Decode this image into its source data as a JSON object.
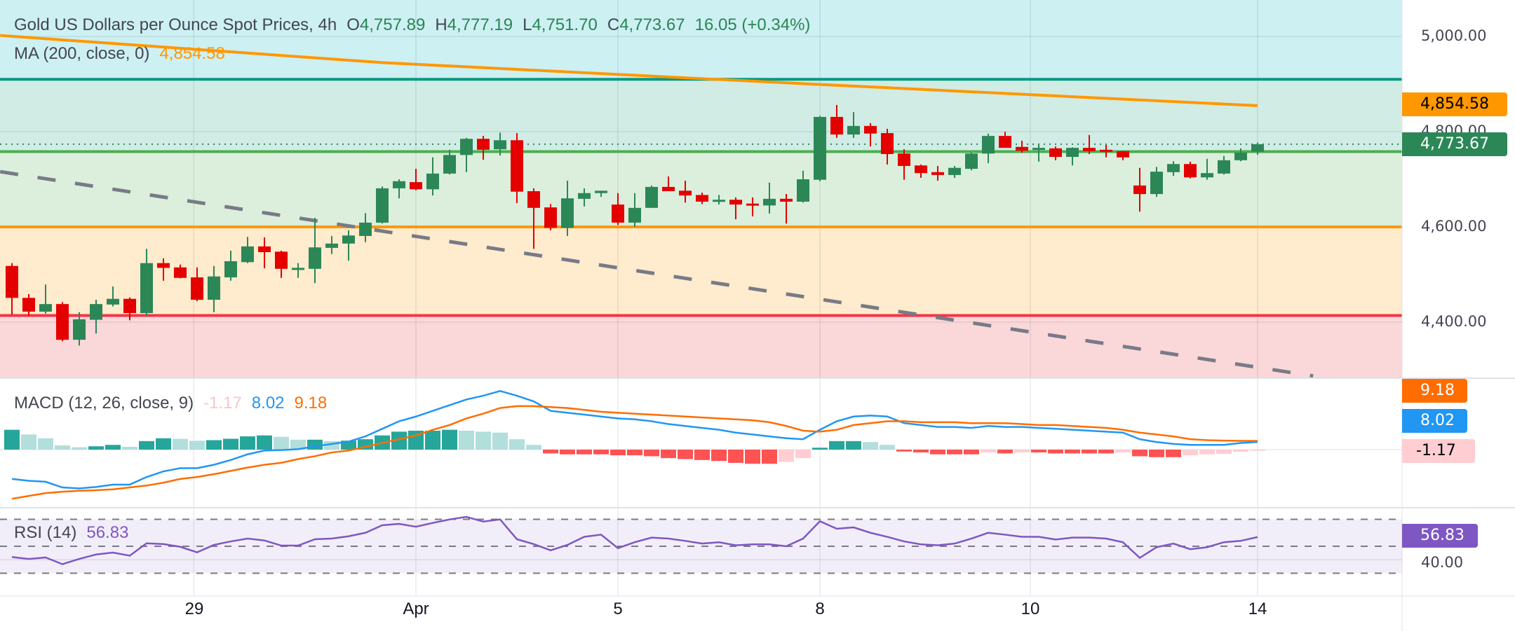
{
  "header": {
    "title": "Gold US Dollars per Ounce Spot Prices, 4h",
    "open_label": "O",
    "open": "4,757.89",
    "high_label": "H",
    "high": "4,777.19",
    "low_label": "L",
    "low": "4,751.70",
    "close_label": "C",
    "close": "4,773.67",
    "change": "16.05 (+0.34%)"
  },
  "ma_legend": {
    "label": "MA (200, close, 0)",
    "value": "4,854.58"
  },
  "macd_legend": {
    "label": "MACD (12, 26, close, 9)",
    "histogram": "-1.17",
    "macd": "8.02",
    "signal": "9.18"
  },
  "rsi_legend": {
    "label": "RSI (14)",
    "value": "56.83"
  },
  "price_axis": {
    "ticks": [
      "5,000.00",
      "4,800.00",
      "4,600.00",
      "4,400.00"
    ],
    "ma_badge": "4,854.58",
    "last_price_badge": "4,773.67"
  },
  "macd_axis": {
    "signal_badge": "9.18",
    "macd_badge": "8.02",
    "histogram_badge": "-1.17"
  },
  "rsi_axis": {
    "value_badge": "56.83",
    "tick": "40.00"
  },
  "time_axis": {
    "labels": [
      "29",
      "Apr",
      "5",
      "8",
      "10",
      "14"
    ]
  },
  "colors": {
    "up": "#2c8757",
    "down": "#e50000",
    "ma": "#ff9800",
    "macd": "#2196f3",
    "signal": "#ff6d00",
    "rsi": "#7e57c2",
    "hist_up_strong": "#26a69a",
    "hist_up_weak": "#b2dfdb",
    "hist_down_strong": "#ff5252",
    "hist_down_weak": "#ffcdd2",
    "zone_top": "#cdf0f3",
    "zone_teal": "#d1ece4",
    "zone_green": "#dcefdc",
    "zone_orange": "#ffebcd",
    "zone_red": "#fad7d9",
    "line_teal": "#089981",
    "line_green": "#4caf50",
    "line_orange": "#ff9800",
    "line_red": "#f23645",
    "trendline": "#787b86"
  },
  "chart_data": {
    "type": "candlestick",
    "title": "Gold US Dollars per Ounce Spot Prices, 4h",
    "interval": "4h",
    "price_range": [
      4300,
      5070
    ],
    "x_ticks": [
      {
        "label": "29",
        "bar": 10.8
      },
      {
        "label": "Apr",
        "bar": 24
      },
      {
        "label": "5",
        "bar": 36
      },
      {
        "label": "8",
        "bar": 48
      },
      {
        "label": "10",
        "bar": 60.5
      },
      {
        "label": "14",
        "bar": 74
      }
    ],
    "y_ticks": [
      5000,
      4800,
      4600,
      4400
    ],
    "last_price": 4773.67,
    "candles_ohlc": [
      [
        4518,
        4524,
        4416,
        4451
      ],
      [
        4451,
        4459,
        4413,
        4422
      ],
      [
        4422,
        4479,
        4418,
        4438
      ],
      [
        4438,
        4442,
        4360,
        4363
      ],
      [
        4363,
        4421,
        4351,
        4406
      ],
      [
        4405,
        4447,
        4376,
        4438
      ],
      [
        4437,
        4475,
        4433,
        4449
      ],
      [
        4449,
        4452,
        4404,
        4419
      ],
      [
        4419,
        4554,
        4413,
        4524
      ],
      [
        4524,
        4534,
        4487,
        4514
      ],
      [
        4515,
        4521,
        4492,
        4493
      ],
      [
        4494,
        4515,
        4444,
        4447
      ],
      [
        4447,
        4518,
        4421,
        4496
      ],
      [
        4494,
        4550,
        4487,
        4528
      ],
      [
        4526,
        4579,
        4524,
        4559
      ],
      [
        4559,
        4578,
        4513,
        4547
      ],
      [
        4548,
        4550,
        4493,
        4512
      ],
      [
        4512,
        4524,
        4493,
        4514
      ],
      [
        4512,
        4619,
        4482,
        4557
      ],
      [
        4556,
        4581,
        4543,
        4565
      ],
      [
        4565,
        4593,
        4529,
        4582
      ],
      [
        4581,
        4629,
        4568,
        4609
      ],
      [
        4609,
        4685,
        4607,
        4681
      ],
      [
        4681,
        4700,
        4660,
        4696
      ],
      [
        4694,
        4722,
        4677,
        4679
      ],
      [
        4679,
        4746,
        4666,
        4712
      ],
      [
        4712,
        4762,
        4710,
        4751
      ],
      [
        4751,
        4787,
        4715,
        4785
      ],
      [
        4785,
        4791,
        4741,
        4762
      ],
      [
        4763,
        4798,
        4750,
        4782
      ],
      [
        4782,
        4797,
        4650,
        4674
      ],
      [
        4675,
        4681,
        4554,
        4640
      ],
      [
        4641,
        4648,
        4593,
        4598
      ],
      [
        4598,
        4697,
        4581,
        4660
      ],
      [
        4659,
        4681,
        4643,
        4671
      ],
      [
        4671,
        4676,
        4663,
        4676
      ],
      [
        4647,
        4671,
        4604,
        4609
      ],
      [
        4609,
        4671,
        4600,
        4640
      ],
      [
        4640,
        4687,
        4640,
        4684
      ],
      [
        4684,
        4706,
        4675,
        4675
      ],
      [
        4676,
        4697,
        4651,
        4666
      ],
      [
        4667,
        4672,
        4648,
        4653
      ],
      [
        4653,
        4667,
        4647,
        4657
      ],
      [
        4657,
        4662,
        4616,
        4647
      ],
      [
        4649,
        4662,
        4622,
        4645
      ],
      [
        4645,
        4693,
        4628,
        4659
      ],
      [
        4659,
        4669,
        4607,
        4653
      ],
      [
        4653,
        4718,
        4651,
        4700
      ],
      [
        4699,
        4833,
        4696,
        4831
      ],
      [
        4831,
        4856,
        4787,
        4794
      ],
      [
        4794,
        4841,
        4787,
        4812
      ],
      [
        4812,
        4818,
        4769,
        4796
      ],
      [
        4797,
        4806,
        4731,
        4753
      ],
      [
        4754,
        4763,
        4699,
        4728
      ],
      [
        4729,
        4731,
        4703,
        4713
      ],
      [
        4715,
        4728,
        4697,
        4709
      ],
      [
        4709,
        4728,
        4703,
        4724
      ],
      [
        4722,
        4756,
        4719,
        4754
      ],
      [
        4754,
        4796,
        4734,
        4791
      ],
      [
        4791,
        4800,
        4766,
        4766
      ],
      [
        4768,
        4781,
        4756,
        4760
      ],
      [
        4765,
        4775,
        4737,
        4766
      ],
      [
        4765,
        4769,
        4740,
        4747
      ],
      [
        4747,
        4767,
        4729,
        4766
      ],
      [
        4766,
        4793,
        4753,
        4759
      ],
      [
        4762,
        4772,
        4746,
        4760
      ],
      [
        4759,
        4759,
        4740,
        4746
      ],
      [
        4687,
        4724,
        4632,
        4669
      ],
      [
        4669,
        4726,
        4663,
        4716
      ],
      [
        4715,
        4738,
        4707,
        4732
      ],
      [
        4732,
        4737,
        4702,
        4704
      ],
      [
        4704,
        4743,
        4699,
        4713
      ],
      [
        4712,
        4749,
        4710,
        4740
      ],
      [
        4740,
        4765,
        4738,
        4756
      ],
      [
        4757.89,
        4777.19,
        4751.7,
        4773.67
      ]
    ],
    "ma200_points": [
      [
        -0.7,
        5002
      ],
      [
        22,
        4945
      ],
      [
        44,
        4906
      ],
      [
        74,
        4854.58
      ]
    ],
    "horizontal_levels": [
      {
        "price": 4910,
        "color": "#089981"
      },
      {
        "price": 4758,
        "color": "#4caf50"
      },
      {
        "price": 4600,
        "color": "#ff9800"
      },
      {
        "price": 4414,
        "color": "#f23645"
      }
    ],
    "trendline": [
      [
        -0.7,
        4716
      ],
      [
        77.3,
        4287
      ]
    ],
    "macd": {
      "macd": [
        -31,
        -33,
        -34,
        -40,
        -41,
        -39.5,
        -37,
        -37,
        -29,
        -23,
        -19.6,
        -19.6,
        -16,
        -11,
        -5,
        -1,
        -0.5,
        0.5,
        3.5,
        6,
        8.5,
        14,
        22,
        30,
        35,
        41,
        47,
        53,
        57,
        62,
        57,
        51,
        41,
        39,
        37,
        35,
        33,
        32,
        30,
        27,
        25,
        23,
        21,
        18,
        16,
        14,
        12,
        11,
        21,
        30,
        35,
        36,
        35,
        28,
        26,
        24,
        24,
        23,
        25,
        24,
        24,
        23,
        22,
        21,
        20,
        19,
        18,
        11,
        8,
        6,
        5,
        5,
        5,
        7,
        8.02
      ],
      "signal": [
        -52,
        -49,
        -46,
        -44.5,
        -43.5,
        -43,
        -42,
        -40,
        -38,
        -35,
        -31,
        -29,
        -26,
        -22.5,
        -19,
        -16,
        -14,
        -10,
        -7,
        -3,
        -1,
        3,
        7,
        11,
        15,
        21,
        26,
        33,
        38,
        44,
        46,
        46,
        45,
        44,
        42,
        40,
        39,
        38,
        37,
        36,
        35,
        34,
        33,
        32,
        31,
        29,
        25,
        20,
        19,
        21,
        26,
        28,
        30,
        30,
        29,
        29,
        29,
        28,
        28,
        28,
        27,
        26,
        26,
        25,
        24,
        23,
        21,
        18,
        16,
        14,
        11,
        10,
        9.5,
        9.3,
        9.18
      ]
    },
    "rsi": {
      "values": [
        42,
        40.6,
        41.7,
        36.7,
        40.6,
        43.9,
        45.3,
        43,
        52.2,
        51.6,
        49.6,
        45.5,
        51,
        53.6,
        55.7,
        54.3,
        50.5,
        50.5,
        55.2,
        55.7,
        57.4,
        60,
        65.6,
        66.6,
        64.5,
        67.3,
        69.9,
        71.8,
        68.3,
        69.9,
        55.2,
        51.6,
        47,
        51,
        57,
        58.6,
        48.6,
        53,
        56.4,
        55.7,
        54,
        52,
        53,
        50.7,
        51.4,
        51.4,
        50,
        55.7,
        68.6,
        63,
        64,
        60,
        57,
        53.6,
        51.4,
        50.7,
        52,
        55.7,
        60,
        58.6,
        57,
        57,
        55,
        56.4,
        56.4,
        55.7,
        53,
        41.4,
        49.3,
        52,
        47.8,
        49.3,
        53,
        54,
        56.83
      ],
      "bands": [
        70,
        50,
        30
      ]
    }
  }
}
